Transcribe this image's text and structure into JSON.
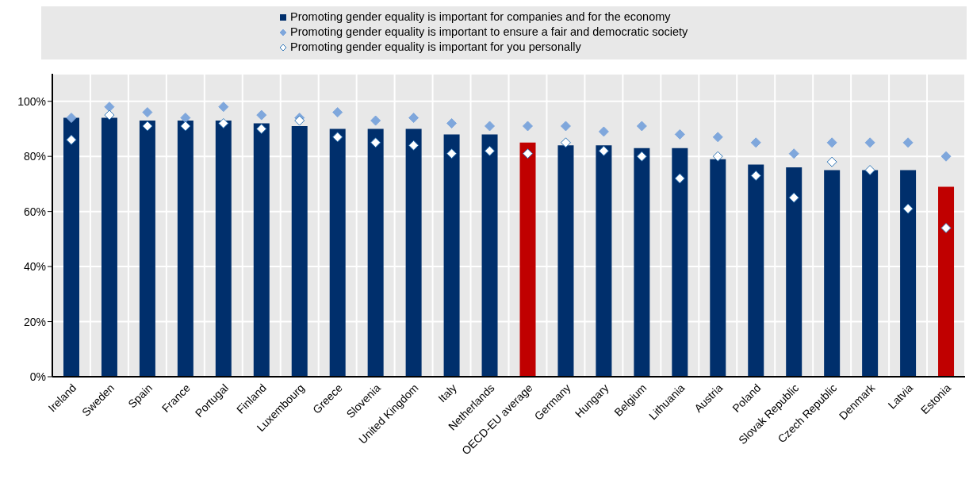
{
  "chart_data": {
    "type": "bar",
    "categories": [
      "Ireland",
      "Sweden",
      "Spain",
      "France",
      "Portugal",
      "Finland",
      "Luxembourg",
      "Greece",
      "Slovenia",
      "United Kingdom",
      "Italy",
      "Netherlands",
      "OECD-EU average",
      "Germany",
      "Hungary",
      "Belgium",
      "Lithuania",
      "Austria",
      "Poland",
      "Slovak Republic",
      "Czech Republic",
      "Denmark",
      "Latvia",
      "Estonia"
    ],
    "series": [
      {
        "name": "Promoting gender equality is important for companies and for the economy",
        "color": "#002f6c",
        "colors": [
          "#002f6c",
          "#002f6c",
          "#002f6c",
          "#002f6c",
          "#002f6c",
          "#002f6c",
          "#002f6c",
          "#002f6c",
          "#002f6c",
          "#002f6c",
          "#002f6c",
          "#002f6c",
          "#c00000",
          "#002f6c",
          "#002f6c",
          "#002f6c",
          "#002f6c",
          "#002f6c",
          "#002f6c",
          "#002f6c",
          "#002f6c",
          "#002f6c",
          "#002f6c",
          "#c00000"
        ],
        "values": [
          94,
          94,
          93,
          93,
          93,
          92,
          91,
          90,
          90,
          90,
          88,
          88,
          85,
          84,
          84,
          83,
          83,
          79,
          77,
          76,
          75,
          75,
          75,
          69
        ]
      },
      {
        "name": "Promoting gender equality is important to ensure a fair and democratic society",
        "type": "scatter",
        "color": "#7fa7dc",
        "values": [
          94,
          98,
          96,
          94,
          98,
          95,
          94,
          96,
          93,
          94,
          92,
          91,
          91,
          91,
          89,
          91,
          88,
          87,
          85,
          81,
          85,
          85,
          85,
          80
        ]
      },
      {
        "name": "Promoting gender equality is important for you personally",
        "type": "scatter",
        "color": "#ffffff",
        "values": [
          86,
          95,
          91,
          91,
          92,
          90,
          93,
          87,
          85,
          84,
          81,
          82,
          81,
          85,
          82,
          80,
          72,
          80,
          73,
          65,
          78,
          75,
          61,
          54
        ]
      }
    ],
    "ylim": [
      0,
      110
    ],
    "yticks": [
      {
        "value": 0,
        "label": "0%"
      },
      {
        "value": 20,
        "label": "20%"
      },
      {
        "value": 40,
        "label": "40%"
      },
      {
        "value": 60,
        "label": "60%"
      },
      {
        "value": 80,
        "label": "80%"
      },
      {
        "value": 100,
        "label": "100%"
      }
    ],
    "grid": true,
    "legend": "top",
    "marker": "diamond"
  }
}
